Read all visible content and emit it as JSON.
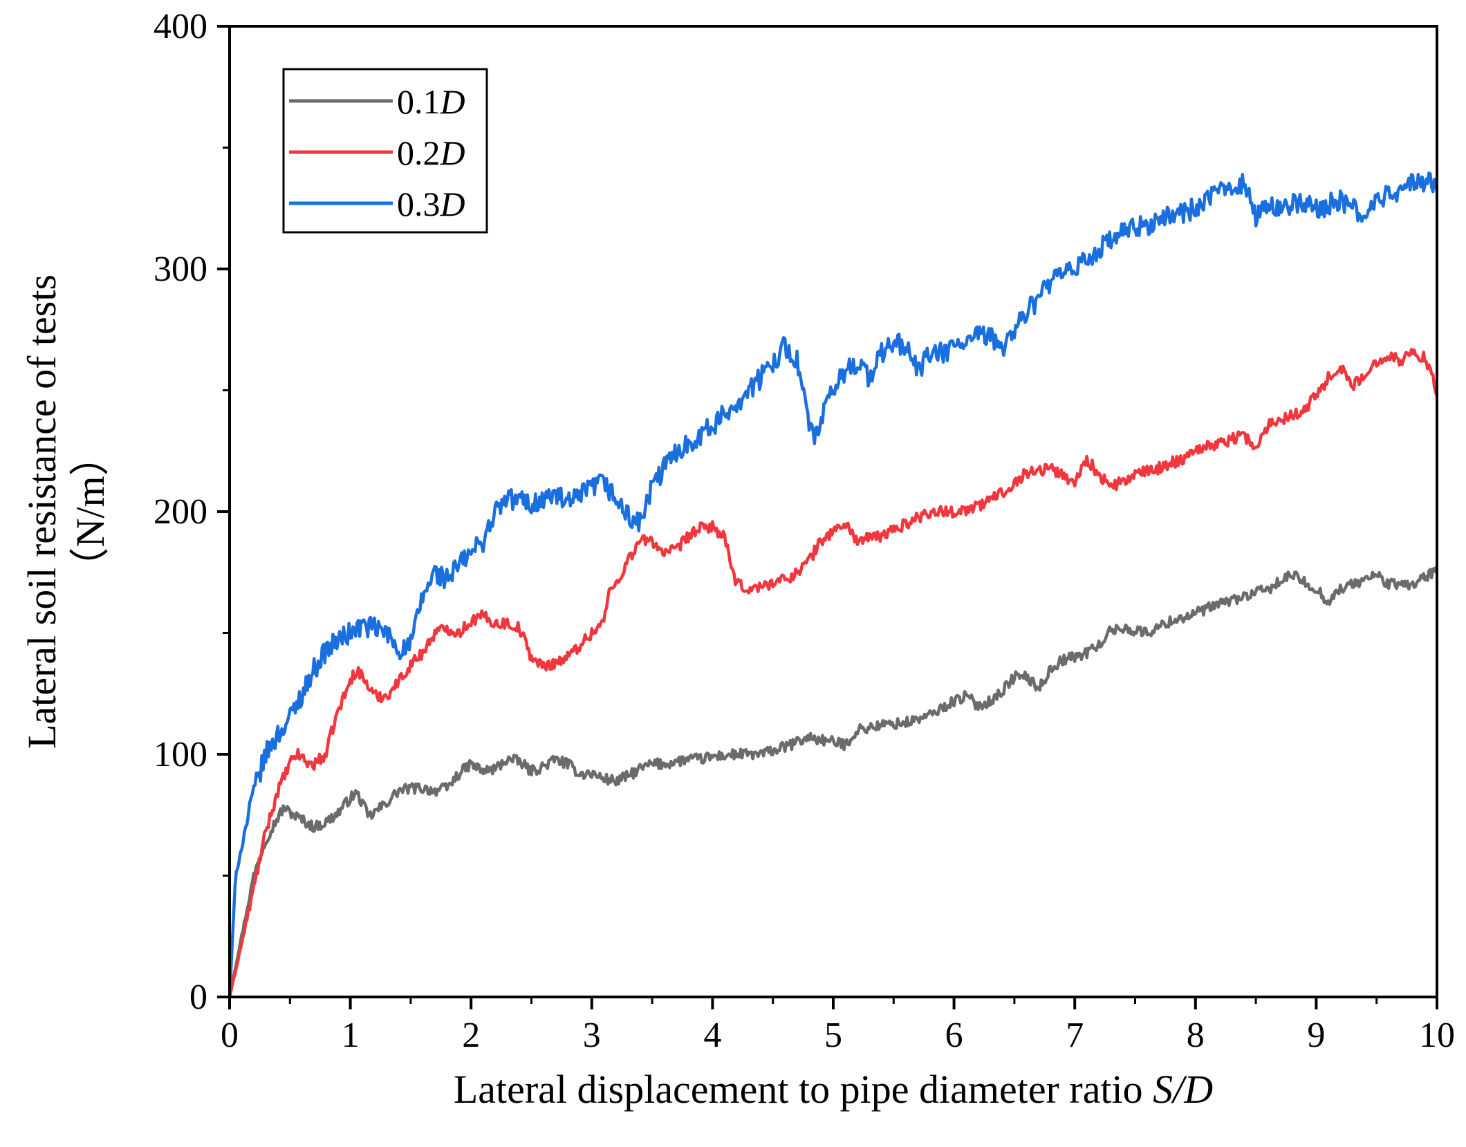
{
  "chart_data": {
    "type": "line",
    "title": "",
    "xlabel": "Lateral displacement to pipe diameter ratio ",
    "xlabel_italic": "S/D",
    "ylabel": "Lateral soil resistance of tests",
    "ylabel_unit": "（N/m）",
    "xlim": [
      0,
      10
    ],
    "ylim": [
      0,
      400
    ],
    "xticks": [
      "0",
      "1",
      "2",
      "3",
      "4",
      "5",
      "6",
      "7",
      "8",
      "9",
      "10"
    ],
    "yticks": [
      "0",
      "100",
      "200",
      "300",
      "400"
    ],
    "legend_position": "top-left",
    "series": [
      {
        "name": "0.1D",
        "label_prefix": "0.1",
        "label_italic": "D",
        "color": "#6b6b6b",
        "x": [
          0,
          0.1,
          0.2,
          0.3,
          0.4,
          0.45,
          0.5,
          0.6,
          0.7,
          0.8,
          0.9,
          1.0,
          1.05,
          1.1,
          1.15,
          1.2,
          1.3,
          1.4,
          1.5,
          1.6,
          1.7,
          1.8,
          1.9,
          2.0,
          2.1,
          2.2,
          2.3,
          2.4,
          2.5,
          2.6,
          2.7,
          2.8,
          2.9,
          3.0,
          3.1,
          3.2,
          3.3,
          3.4,
          3.5,
          3.6,
          3.7,
          3.8,
          3.9,
          4.0,
          4.2,
          4.4,
          4.6,
          4.8,
          5.0,
          5.1,
          5.2,
          5.4,
          5.6,
          5.8,
          6.0,
          6.1,
          6.2,
          6.3,
          6.4,
          6.5,
          6.6,
          6.7,
          6.8,
          6.9,
          7.0,
          7.1,
          7.2,
          7.3,
          7.4,
          7.5,
          7.6,
          7.8,
          8.0,
          8.2,
          8.4,
          8.6,
          8.8,
          9.0,
          9.1,
          9.2,
          9.4,
          9.5,
          9.6,
          9.8,
          10.0
        ],
        "values": [
          0,
          25,
          50,
          65,
          74,
          78,
          76,
          73,
          70,
          72,
          76,
          82,
          84,
          80,
          74,
          76,
          80,
          85,
          86,
          86,
          85,
          86,
          92,
          96,
          93,
          94,
          98,
          97,
          93,
          95,
          98,
          96,
          92,
          92,
          90,
          89,
          91,
          94,
          96,
          96,
          97,
          98,
          98,
          99,
          100,
          100,
          103,
          107,
          105,
          104,
          110,
          112,
          113,
          116,
          122,
          124,
          120,
          122,
          126,
          132,
          132,
          127,
          135,
          139,
          140,
          142,
          145,
          151,
          152,
          151,
          150,
          155,
          158,
          162,
          165,
          168,
          174,
          168,
          163,
          168,
          172,
          174,
          170,
          170,
          176
        ]
      },
      {
        "name": "0.2D",
        "label_prefix": "0.2",
        "label_italic": "D",
        "color": "#f0373d",
        "x": [
          0,
          0.1,
          0.2,
          0.3,
          0.4,
          0.5,
          0.55,
          0.6,
          0.65,
          0.7,
          0.8,
          0.85,
          0.9,
          1.0,
          1.05,
          1.1,
          1.2,
          1.3,
          1.4,
          1.5,
          1.6,
          1.7,
          1.8,
          1.9,
          2.0,
          2.1,
          2.2,
          2.3,
          2.4,
          2.5,
          2.6,
          2.7,
          2.8,
          2.9,
          3.0,
          3.1,
          3.15,
          3.2,
          3.3,
          3.4,
          3.5,
          3.6,
          3.7,
          3.8,
          3.9,
          4.0,
          4.1,
          4.15,
          4.2,
          4.3,
          4.4,
          4.5,
          4.6,
          4.7,
          4.8,
          4.9,
          5.0,
          5.1,
          5.2,
          5.4,
          5.6,
          5.8,
          6.0,
          6.2,
          6.4,
          6.6,
          6.8,
          6.9,
          7.0,
          7.1,
          7.2,
          7.3,
          7.5,
          7.7,
          7.9,
          8.0,
          8.2,
          8.4,
          8.5,
          8.6,
          8.7,
          8.8,
          8.9,
          9.0,
          9.1,
          9.2,
          9.3,
          9.4,
          9.5,
          9.6,
          9.7,
          9.8,
          9.9,
          10.0
        ],
        "values": [
          0,
          22,
          45,
          68,
          85,
          96,
          100,
          99,
          96,
          96,
          100,
          110,
          118,
          130,
          135,
          132,
          124,
          124,
          130,
          137,
          142,
          150,
          152,
          150,
          155,
          157,
          154,
          154,
          152,
          140,
          136,
          138,
          140,
          145,
          150,
          155,
          168,
          170,
          180,
          188,
          188,
          183,
          184,
          190,
          193,
          194,
          189,
          178,
          170,
          168,
          169,
          171,
          172,
          175,
          180,
          188,
          192,
          195,
          188,
          190,
          195,
          200,
          200,
          202,
          208,
          216,
          218,
          215,
          212,
          222,
          215,
          210,
          215,
          218,
          222,
          226,
          228,
          232,
          225,
          236,
          238,
          240,
          242,
          248,
          255,
          260,
          252,
          255,
          262,
          265,
          262,
          266,
          263,
          250
        ]
      },
      {
        "name": "0.3D",
        "label_prefix": "0.3",
        "label_italic": "D",
        "color": "#1a6fdf",
        "x": [
          0,
          0.05,
          0.1,
          0.2,
          0.3,
          0.4,
          0.5,
          0.6,
          0.7,
          0.8,
          0.9,
          1.0,
          1.1,
          1.2,
          1.3,
          1.4,
          1.5,
          1.6,
          1.7,
          1.8,
          1.9,
          2.0,
          2.1,
          2.2,
          2.3,
          2.4,
          2.5,
          2.6,
          2.7,
          2.8,
          2.9,
          3.0,
          3.1,
          3.2,
          3.3,
          3.4,
          3.5,
          3.6,
          3.7,
          3.8,
          3.9,
          4.0,
          4.1,
          4.2,
          4.3,
          4.4,
          4.5,
          4.6,
          4.7,
          4.75,
          4.8,
          4.85,
          4.9,
          5.0,
          5.1,
          5.2,
          5.3,
          5.4,
          5.5,
          5.6,
          5.7,
          5.8,
          5.9,
          6.0,
          6.1,
          6.2,
          6.3,
          6.4,
          6.5,
          6.6,
          6.7,
          6.8,
          6.9,
          7.0,
          7.2,
          7.4,
          7.6,
          7.8,
          8.0,
          8.1,
          8.2,
          8.3,
          8.4,
          8.5,
          8.6,
          8.8,
          9.0,
          9.2,
          9.4,
          9.5,
          9.6,
          9.7,
          9.8,
          9.9,
          10.0
        ],
        "values": [
          0,
          50,
          62,
          85,
          100,
          108,
          115,
          125,
          135,
          143,
          147,
          150,
          153,
          152,
          150,
          143,
          145,
          165,
          175,
          172,
          178,
          183,
          188,
          200,
          205,
          205,
          203,
          205,
          207,
          203,
          206,
          210,
          212,
          205,
          198,
          195,
          210,
          218,
          225,
          228,
          232,
          235,
          240,
          245,
          250,
          255,
          262,
          268,
          262,
          250,
          235,
          230,
          238,
          250,
          258,
          262,
          255,
          265,
          270,
          268,
          258,
          265,
          265,
          268,
          270,
          272,
          272,
          268,
          275,
          282,
          288,
          295,
          297,
          300,
          308,
          315,
          318,
          322,
          325,
          328,
          332,
          335,
          335,
          322,
          325,
          327,
          325,
          328,
          322,
          328,
          330,
          333,
          335,
          336,
          335
        ]
      }
    ]
  }
}
